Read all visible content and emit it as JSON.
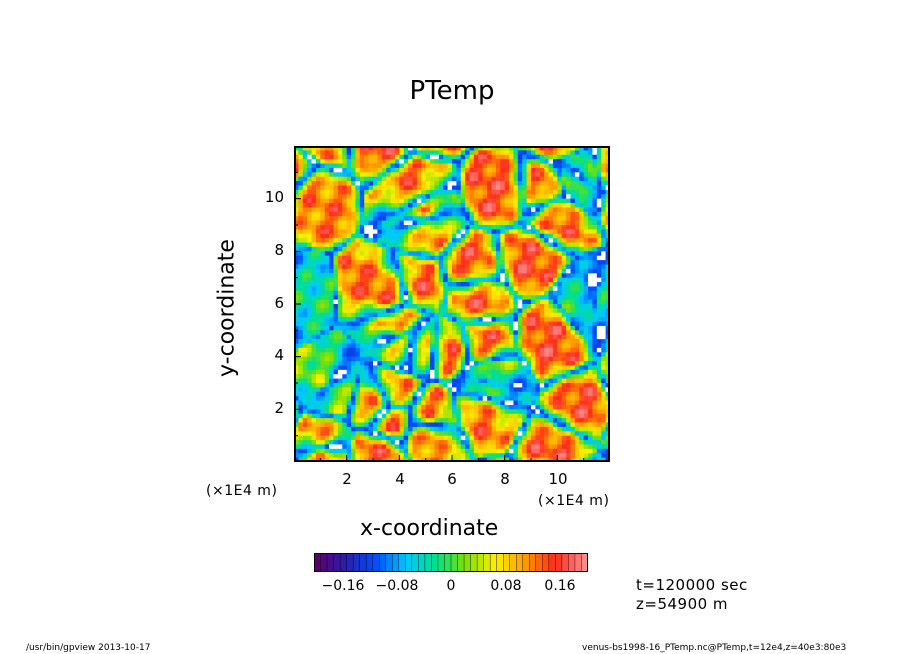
{
  "chart_data": {
    "type": "heatmap",
    "title": "PTemp",
    "xlabel": "x-coordinate",
    "ylabel": "y-coordinate",
    "x_units": "(×1E4 m)",
    "y_units": "(×1E4 m)",
    "xlim": [
      0,
      12
    ],
    "ylim": [
      0,
      12
    ],
    "x_ticks": [
      "2",
      "4",
      "6",
      "8",
      "10"
    ],
    "y_ticks": [
      "2",
      "4",
      "6",
      "8",
      "10"
    ],
    "colorbar": {
      "range": [
        -0.21,
        0.21
      ],
      "levels": 42,
      "ticks": [
        "−0.16",
        "−0.08",
        "0",
        "0.08",
        "0.16"
      ],
      "tick_values": [
        -0.16,
        -0.08,
        0,
        0.08,
        0.16
      ],
      "colormap": [
        "#5a006e",
        "#2a1fb0",
        "#0050ff",
        "#00c8ff",
        "#00e08a",
        "#7fe000",
        "#ffef00",
        "#ff9a00",
        "#ff2a1a",
        "#ff8a8a"
      ]
    },
    "grid": false
  },
  "annotations": {
    "time": "t=120000 sec",
    "height": "z=54900 m"
  },
  "footer": {
    "left": "/usr/bin/gpview   2013-10-17",
    "right": "venus-bs1998-16_PTemp.nc@PTemp,t=12e4,z=40e3:80e3"
  }
}
